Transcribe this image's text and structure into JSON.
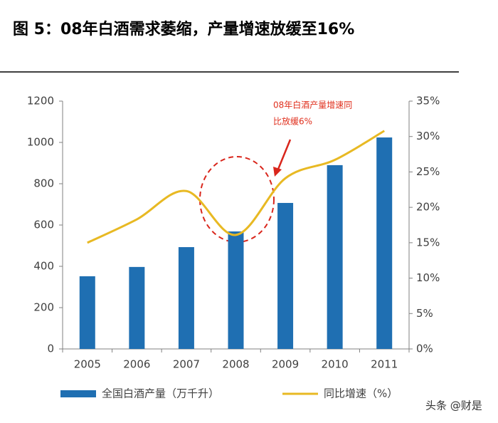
{
  "chart_data": {
    "type": "bar-line",
    "title": "图 5：08年白酒需求萎缩，产量增速放缓至16%",
    "categories": [
      "2005",
      "2006",
      "2007",
      "2008",
      "2009",
      "2010",
      "2011"
    ],
    "series": [
      {
        "name": "全国白酒产量（万千升）",
        "type": "bar",
        "color": "#1f6fb2",
        "values": [
          352,
          397,
          493,
          569,
          707,
          890,
          1024
        ]
      },
      {
        "name": "同比增速（%）",
        "type": "line",
        "axis": "y2",
        "color": "#e8b923",
        "values": [
          15.0,
          18.3,
          22.3,
          16.1,
          24.1,
          26.7,
          30.8
        ]
      }
    ],
    "ylim": [
      0,
      1200
    ],
    "yticks": [
      0,
      200,
      400,
      600,
      800,
      1000,
      1200
    ],
    "y2lim": [
      0,
      35
    ],
    "y2ticks": [
      {
        "value": 0,
        "label": "0%"
      },
      {
        "value": 5,
        "label": "5%"
      },
      {
        "value": 10,
        "label": "10%"
      },
      {
        "value": 15,
        "label": "15%"
      },
      {
        "value": 20,
        "label": "20%"
      },
      {
        "value": 25,
        "label": "25%"
      },
      {
        "value": 30,
        "label": "30%"
      },
      {
        "value": 35,
        "label": "35%"
      }
    ],
    "annotation": [
      "08年白酒产量增速同",
      "比放缓6%"
    ],
    "watermark": "头条 @财是"
  }
}
